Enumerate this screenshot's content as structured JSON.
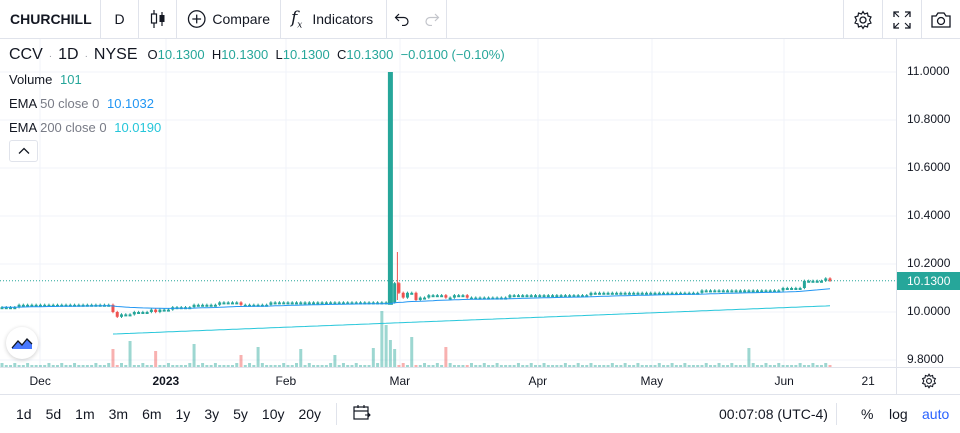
{
  "toolbar": {
    "symbol": "CHURCHILL",
    "interval": "D",
    "compare_label": "Compare",
    "indicators_label": "Indicators"
  },
  "legend": {
    "ticker": "CCV",
    "interval": "1D",
    "exchange": "NYSE",
    "open_label": "O",
    "open": "10.1300",
    "high_label": "H",
    "high": "10.1300",
    "low_label": "L",
    "low": "10.1300",
    "close_label": "C",
    "close": "10.1300",
    "change": "−0.0100 (−0.10%)"
  },
  "indicators": [
    {
      "label": "Volume",
      "params": "",
      "value": "101",
      "color": "#26a69a"
    },
    {
      "label": "EMA",
      "params": "50 close 0",
      "value": "10.1032",
      "color": "#2196f3"
    },
    {
      "label": "EMA",
      "params": "200 close 0",
      "value": "10.0190",
      "color": "#26c6da"
    }
  ],
  "price_axis": {
    "ticks": [
      "11.0000",
      "10.8000",
      "10.6000",
      "10.4000",
      "10.2000",
      "10.0000",
      "9.8000"
    ],
    "current_price": "10.1300"
  },
  "time_axis": {
    "ticks": [
      {
        "label": "Dec",
        "bold": false
      },
      {
        "label": "2023",
        "bold": true
      },
      {
        "label": "Feb",
        "bold": false
      },
      {
        "label": "Mar",
        "bold": false
      },
      {
        "label": "Apr",
        "bold": false
      },
      {
        "label": "May",
        "bold": false
      },
      {
        "label": "Jun",
        "bold": false
      },
      {
        "label": "21",
        "bold": false
      }
    ]
  },
  "bottom": {
    "ranges": [
      "1d",
      "5d",
      "1m",
      "3m",
      "6m",
      "1y",
      "3y",
      "5y",
      "10y",
      "20y"
    ],
    "clock": "00:07:08 (UTC-4)",
    "percent": "%",
    "log": "log",
    "auto": "auto"
  },
  "colors": {
    "up": "#26a69a",
    "down": "#ef5350",
    "ema50": "#2196f3",
    "ema200": "#26c6da",
    "accent": "#2962ff"
  },
  "chart_data": {
    "type": "candlestick",
    "ylim": [
      9.8,
      11.0
    ],
    "x_ticks": [
      "Dec",
      "2023",
      "Feb",
      "Mar",
      "Apr",
      "May",
      "Jun",
      "21"
    ],
    "close": [
      10.02,
      10.02,
      10.02,
      10.02,
      10.03,
      10.03,
      10.03,
      10.03,
      10.03,
      10.03,
      10.03,
      10.03,
      10.03,
      10.03,
      10.03,
      10.03,
      10.03,
      10.03,
      10.03,
      10.03,
      10.03,
      10.03,
      10.03,
      10.03,
      10.03,
      10.03,
      10.0,
      9.98,
      9.99,
      9.99,
      9.99,
      10.0,
      10.0,
      10.0,
      10.0,
      10.01,
      10.0,
      10.01,
      10.01,
      10.01,
      10.02,
      10.02,
      10.02,
      10.02,
      10.02,
      10.03,
      10.03,
      10.03,
      10.03,
      10.03,
      10.03,
      10.04,
      10.04,
      10.04,
      10.04,
      10.04,
      10.03,
      10.03,
      10.03,
      10.03,
      10.03,
      10.03,
      10.03,
      10.04,
      10.04,
      10.04,
      10.04,
      10.04,
      10.04,
      10.04,
      10.04,
      10.04,
      10.04,
      10.04,
      10.04,
      10.04,
      10.04,
      10.04,
      10.04,
      10.04,
      10.04,
      10.04,
      10.04,
      10.04,
      10.04,
      10.04,
      10.04,
      10.04,
      10.04,
      10.04,
      10.04,
      10.04,
      10.12,
      10.08,
      10.06,
      10.08,
      10.08,
      10.05,
      10.06,
      10.06,
      10.07,
      10.07,
      10.07,
      10.07,
      10.06,
      10.06,
      10.07,
      10.07,
      10.07,
      10.06,
      10.06,
      10.06,
      10.06,
      10.06,
      10.06,
      10.06,
      10.06,
      10.06,
      10.06,
      10.07,
      10.07,
      10.07,
      10.07,
      10.07,
      10.07,
      10.07,
      10.07,
      10.07,
      10.07,
      10.07,
      10.07,
      10.07,
      10.07,
      10.07,
      10.07,
      10.07,
      10.07,
      10.07,
      10.08,
      10.08,
      10.08,
      10.08,
      10.08,
      10.08,
      10.08,
      10.08,
      10.08,
      10.08,
      10.08,
      10.08,
      10.08,
      10.08,
      10.08,
      10.08,
      10.08,
      10.08,
      10.08,
      10.08,
      10.08,
      10.08,
      10.08,
      10.08,
      10.08,
      10.08,
      10.09,
      10.09,
      10.09,
      10.09,
      10.09,
      10.09,
      10.09,
      10.09,
      10.09,
      10.09,
      10.09,
      10.09,
      10.09,
      10.09,
      10.09,
      10.09,
      10.09,
      10.09,
      10.09,
      10.1,
      10.1,
      10.1,
      10.1,
      10.1,
      10.13,
      10.13,
      10.13,
      10.13,
      10.13,
      10.14,
      10.13
    ]
  }
}
